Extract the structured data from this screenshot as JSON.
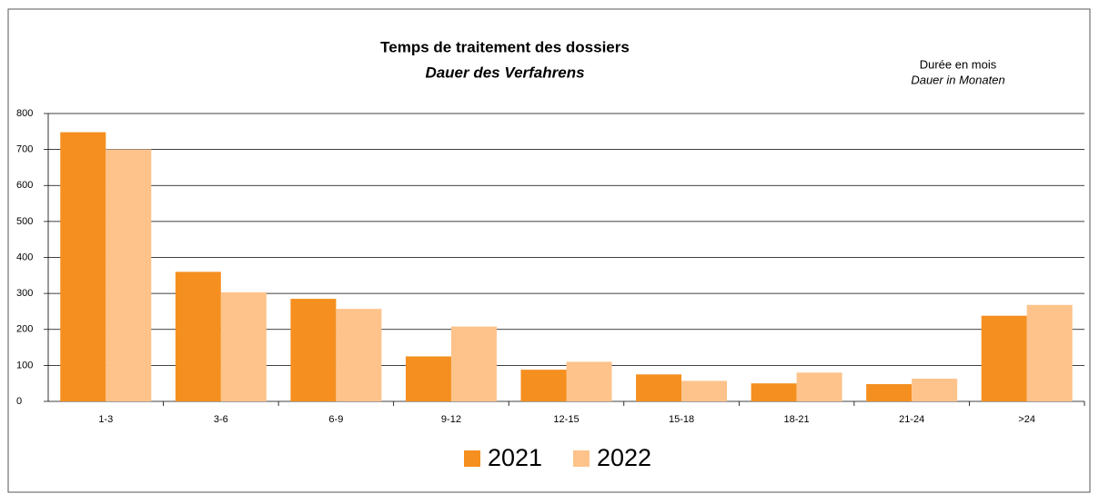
{
  "chart_data": {
    "type": "bar",
    "title": "Temps de traitement des dossiers",
    "subtitle": "Dauer des Verfahrens",
    "annotations": [
      "Durée en mois",
      "Dauer in Monaten"
    ],
    "categories": [
      "1-3",
      "3-6",
      "6-9",
      "9-12",
      "12-15",
      "15-18",
      "18-21",
      "21-24",
      ">24"
    ],
    "series": [
      {
        "name": "2021",
        "color": "#f58f1f",
        "values": [
          748,
          360,
          285,
          125,
          88,
          75,
          50,
          48,
          238
        ]
      },
      {
        "name": "2022",
        "color": "#fdc38b",
        "values": [
          700,
          303,
          257,
          208,
          110,
          57,
          80,
          63,
          268
        ]
      }
    ],
    "ylim": [
      0,
      800
    ],
    "yticks": [
      0,
      100,
      200,
      300,
      400,
      500,
      600,
      700,
      800
    ],
    "grid": true,
    "legend": "bottom"
  }
}
